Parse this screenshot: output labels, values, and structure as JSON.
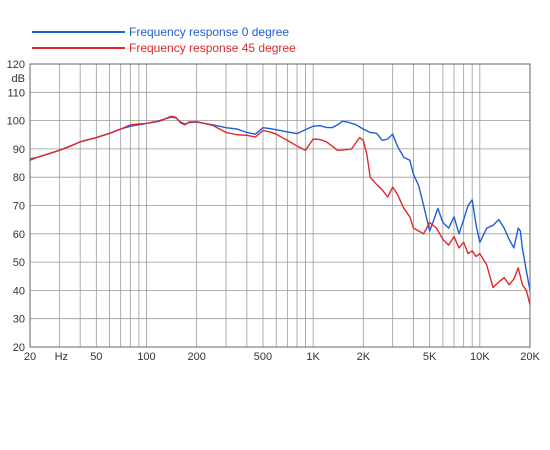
{
  "chart_data": {
    "type": "line",
    "title": "",
    "xlabel": "",
    "ylabel": "",
    "y_unit": "dB",
    "x_scale": "log",
    "xlim": [
      20,
      20000
    ],
    "ylim": [
      20,
      120
    ],
    "grid": true,
    "legend_position": "top",
    "x_ticks": [
      {
        "value": 20,
        "label": "20"
      },
      {
        "value": 30,
        "label": ""
      },
      {
        "value": 40,
        "label": ""
      },
      {
        "value": 50,
        "label": "50"
      },
      {
        "value": 60,
        "label": ""
      },
      {
        "value": 70,
        "label": ""
      },
      {
        "value": 80,
        "label": ""
      },
      {
        "value": 90,
        "label": ""
      },
      {
        "value": 100,
        "label": "100"
      },
      {
        "value": 200,
        "label": "200"
      },
      {
        "value": 300,
        "label": ""
      },
      {
        "value": 400,
        "label": ""
      },
      {
        "value": 500,
        "label": "500"
      },
      {
        "value": 600,
        "label": ""
      },
      {
        "value": 700,
        "label": ""
      },
      {
        "value": 800,
        "label": ""
      },
      {
        "value": 900,
        "label": ""
      },
      {
        "value": 1000,
        "label": "1K"
      },
      {
        "value": 2000,
        "label": "2K"
      },
      {
        "value": 3000,
        "label": ""
      },
      {
        "value": 4000,
        "label": ""
      },
      {
        "value": 5000,
        "label": "5K"
      },
      {
        "value": 6000,
        "label": ""
      },
      {
        "value": 7000,
        "label": ""
      },
      {
        "value": 8000,
        "label": ""
      },
      {
        "value": 9000,
        "label": ""
      },
      {
        "value": 10000,
        "label": "10K"
      },
      {
        "value": 20000,
        "label": "20K"
      }
    ],
    "hz_label": {
      "value": 30,
      "label": "Hz"
    },
    "y_ticks": [
      20,
      30,
      40,
      50,
      60,
      70,
      80,
      90,
      100,
      110,
      120
    ],
    "series": [
      {
        "name": "Frequency response 0 degree",
        "color": "#1f5fd6",
        "points": [
          [
            20,
            86
          ],
          [
            22,
            87
          ],
          [
            25,
            88
          ],
          [
            30,
            89.5
          ],
          [
            35,
            91
          ],
          [
            40,
            92.5
          ],
          [
            50,
            94
          ],
          [
            60,
            95.5
          ],
          [
            70,
            97
          ],
          [
            80,
            98
          ],
          [
            90,
            98.5
          ],
          [
            100,
            99
          ],
          [
            120,
            100
          ],
          [
            140,
            101.2
          ],
          [
            150,
            101
          ],
          [
            160,
            99.5
          ],
          [
            170,
            98.8
          ],
          [
            180,
            99.3
          ],
          [
            200,
            99.5
          ],
          [
            250,
            98.5
          ],
          [
            300,
            97.5
          ],
          [
            350,
            97
          ],
          [
            400,
            95.8
          ],
          [
            450,
            95.2
          ],
          [
            500,
            97.5
          ],
          [
            550,
            97.2
          ],
          [
            600,
            96.8
          ],
          [
            700,
            96
          ],
          [
            800,
            95.4
          ],
          [
            900,
            96.8
          ],
          [
            1000,
            98
          ],
          [
            1100,
            98.2
          ],
          [
            1200,
            97.6
          ],
          [
            1300,
            97.5
          ],
          [
            1400,
            98.5
          ],
          [
            1500,
            99.8
          ],
          [
            1600,
            99.5
          ],
          [
            1800,
            98.6
          ],
          [
            2000,
            97
          ],
          [
            2200,
            95.8
          ],
          [
            2400,
            95.5
          ],
          [
            2600,
            93
          ],
          [
            2800,
            93.5
          ],
          [
            3000,
            95.2
          ],
          [
            3200,
            91
          ],
          [
            3500,
            87
          ],
          [
            3800,
            86
          ],
          [
            4000,
            81
          ],
          [
            4300,
            77
          ],
          [
            4600,
            70
          ],
          [
            5000,
            61
          ],
          [
            5300,
            65
          ],
          [
            5600,
            69
          ],
          [
            6000,
            64
          ],
          [
            6500,
            62
          ],
          [
            7000,
            66
          ],
          [
            7500,
            60
          ],
          [
            8000,
            65
          ],
          [
            8500,
            70
          ],
          [
            9000,
            72
          ],
          [
            9500,
            63
          ],
          [
            10000,
            57
          ],
          [
            11000,
            62
          ],
          [
            12000,
            63
          ],
          [
            13000,
            65
          ],
          [
            14000,
            62
          ],
          [
            15000,
            58
          ],
          [
            16000,
            55
          ],
          [
            17000,
            62
          ],
          [
            17500,
            61
          ],
          [
            18000,
            55
          ],
          [
            19000,
            47
          ],
          [
            20000,
            40
          ]
        ]
      },
      {
        "name": "Frequency response 45 degree",
        "color": "#e0282e",
        "points": [
          [
            20,
            86.5
          ],
          [
            22,
            87
          ],
          [
            25,
            88
          ],
          [
            30,
            89.5
          ],
          [
            35,
            91
          ],
          [
            40,
            92.5
          ],
          [
            50,
            94
          ],
          [
            60,
            95.5
          ],
          [
            70,
            97
          ],
          [
            80,
            98.5
          ],
          [
            90,
            98.8
          ],
          [
            100,
            99
          ],
          [
            120,
            99.8
          ],
          [
            140,
            101.5
          ],
          [
            150,
            101.2
          ],
          [
            160,
            99.2
          ],
          [
            170,
            98.5
          ],
          [
            180,
            99.5
          ],
          [
            200,
            99.6
          ],
          [
            250,
            98.3
          ],
          [
            300,
            95.8
          ],
          [
            350,
            95
          ],
          [
            400,
            94.8
          ],
          [
            450,
            94.2
          ],
          [
            500,
            96.5
          ],
          [
            550,
            96
          ],
          [
            600,
            95.2
          ],
          [
            700,
            93
          ],
          [
            800,
            91
          ],
          [
            900,
            89.5
          ],
          [
            1000,
            93.5
          ],
          [
            1100,
            93.3
          ],
          [
            1200,
            92.5
          ],
          [
            1300,
            91
          ],
          [
            1400,
            89.5
          ],
          [
            1500,
            89.6
          ],
          [
            1700,
            90
          ],
          [
            1900,
            94
          ],
          [
            2000,
            93
          ],
          [
            2100,
            88
          ],
          [
            2200,
            80
          ],
          [
            2400,
            77.5
          ],
          [
            2600,
            75.5
          ],
          [
            2800,
            73
          ],
          [
            3000,
            76.5
          ],
          [
            3200,
            74
          ],
          [
            3500,
            69
          ],
          [
            3800,
            66
          ],
          [
            4000,
            62
          ],
          [
            4300,
            61
          ],
          [
            4600,
            60
          ],
          [
            5000,
            64
          ],
          [
            5500,
            62
          ],
          [
            6000,
            58
          ],
          [
            6500,
            56
          ],
          [
            7000,
            59
          ],
          [
            7500,
            55
          ],
          [
            8000,
            57
          ],
          [
            8500,
            53
          ],
          [
            9000,
            54
          ],
          [
            9500,
            52
          ],
          [
            10000,
            53
          ],
          [
            11000,
            49
          ],
          [
            12000,
            41
          ],
          [
            13000,
            43
          ],
          [
            14000,
            44.5
          ],
          [
            15000,
            42
          ],
          [
            16000,
            44
          ],
          [
            17000,
            48
          ],
          [
            17500,
            45
          ],
          [
            18000,
            42
          ],
          [
            19000,
            40
          ],
          [
            20000,
            35
          ]
        ]
      }
    ]
  }
}
